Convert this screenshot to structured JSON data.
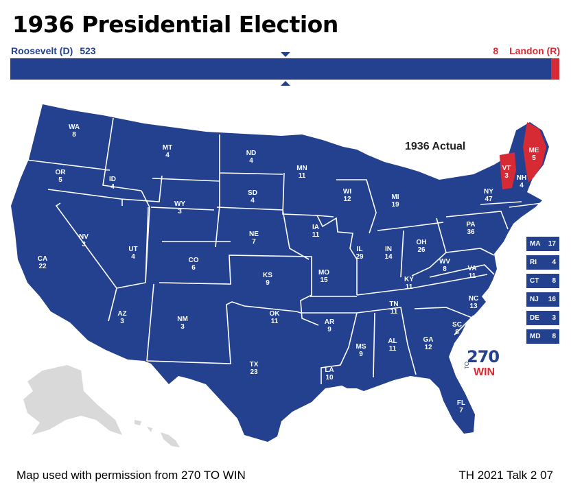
{
  "title": "1936 Presidential Election",
  "candidates": {
    "left": {
      "name": "Roosevelt (D)",
      "votes": "523",
      "color": "#23418f"
    },
    "right": {
      "name": "Landon (R)",
      "votes": "8",
      "color": "#d62b35"
    }
  },
  "bar": {
    "democrat_share": 0.985,
    "republican_share": 0.015
  },
  "map_caption": "1936 Actual",
  "colors": {
    "democrat": "#23418f",
    "republican": "#d62b35",
    "other": "#d9d9d9"
  },
  "states": [
    {
      "abbr": "WA",
      "votes": "8"
    },
    {
      "abbr": "OR",
      "votes": "5"
    },
    {
      "abbr": "CA",
      "votes": "22"
    },
    {
      "abbr": "ID",
      "votes": "4"
    },
    {
      "abbr": "NV",
      "votes": "3"
    },
    {
      "abbr": "MT",
      "votes": "4"
    },
    {
      "abbr": "WY",
      "votes": "3"
    },
    {
      "abbr": "UT",
      "votes": "4"
    },
    {
      "abbr": "AZ",
      "votes": "3"
    },
    {
      "abbr": "CO",
      "votes": "6"
    },
    {
      "abbr": "NM",
      "votes": "3"
    },
    {
      "abbr": "ND",
      "votes": "4"
    },
    {
      "abbr": "SD",
      "votes": "4"
    },
    {
      "abbr": "NE",
      "votes": "7"
    },
    {
      "abbr": "KS",
      "votes": "9"
    },
    {
      "abbr": "OK",
      "votes": "11"
    },
    {
      "abbr": "TX",
      "votes": "23"
    },
    {
      "abbr": "MN",
      "votes": "11"
    },
    {
      "abbr": "IA",
      "votes": "11"
    },
    {
      "abbr": "MO",
      "votes": "15"
    },
    {
      "abbr": "AR",
      "votes": "9"
    },
    {
      "abbr": "LA",
      "votes": "10"
    },
    {
      "abbr": "WI",
      "votes": "12"
    },
    {
      "abbr": "IL",
      "votes": "29"
    },
    {
      "abbr": "MI",
      "votes": "19"
    },
    {
      "abbr": "IN",
      "votes": "14"
    },
    {
      "abbr": "OH",
      "votes": "26"
    },
    {
      "abbr": "KY",
      "votes": "11"
    },
    {
      "abbr": "TN",
      "votes": "11"
    },
    {
      "abbr": "MS",
      "votes": "9"
    },
    {
      "abbr": "AL",
      "votes": "11"
    },
    {
      "abbr": "GA",
      "votes": "12"
    },
    {
      "abbr": "FL",
      "votes": "7"
    },
    {
      "abbr": "SC",
      "votes": "8"
    },
    {
      "abbr": "NC",
      "votes": "13"
    },
    {
      "abbr": "VA",
      "votes": "11"
    },
    {
      "abbr": "WV",
      "votes": "8"
    },
    {
      "abbr": "PA",
      "votes": "36"
    },
    {
      "abbr": "NY",
      "votes": "47"
    },
    {
      "abbr": "VT",
      "votes": "3"
    },
    {
      "abbr": "NH",
      "votes": "4"
    },
    {
      "abbr": "ME",
      "votes": "5"
    }
  ],
  "small_states": [
    {
      "abbr": "MA",
      "votes": "17"
    },
    {
      "abbr": "RI",
      "votes": "4"
    },
    {
      "abbr": "CT",
      "votes": "8"
    },
    {
      "abbr": "NJ",
      "votes": "16"
    },
    {
      "abbr": "DE",
      "votes": "3"
    },
    {
      "abbr": "MD",
      "votes": "8"
    }
  ],
  "logo": {
    "number": "270",
    "to": "TO",
    "win": "WIN"
  },
  "footer": {
    "left": "Map used with permission from 270 TO WIN",
    "right": "TH 2021 Talk 2 07"
  }
}
